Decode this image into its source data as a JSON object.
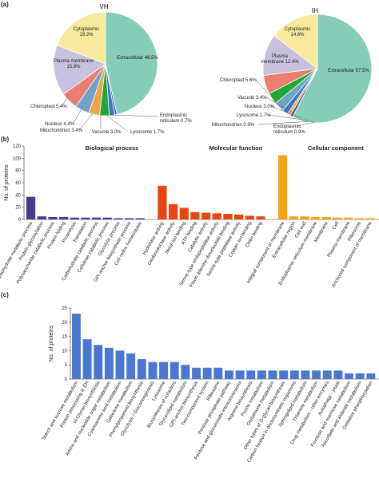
{
  "panels": {
    "a": "(a)",
    "b": "(b)",
    "c": "(c)"
  },
  "chart_data": [
    {
      "type": "pie",
      "title": "VH",
      "slices": [
        {
          "label": "Extracellular",
          "value": 46.5,
          "value_text": "46.5%",
          "color": "#86cdb8"
        },
        {
          "label": "Endoplasmic reticulum",
          "value": 0.7,
          "value_text": "0.7%",
          "color": "#5b5ea6"
        },
        {
          "label": "Lysosome",
          "value": 1.7,
          "value_text": "1.7%",
          "color": "#3a78c2"
        },
        {
          "label": "Vacuole",
          "value": 3.0,
          "value_text": "3.0%",
          "color": "#22a838"
        },
        {
          "label": "Mitochondrion",
          "value": 3.4,
          "value_text": "3.4%",
          "color": "#f0a445"
        },
        {
          "label": "Nucleus",
          "value": 4.4,
          "value_text": "4.4%",
          "color": "#6fa3c8"
        },
        {
          "label": "Chloroplast",
          "value": 5.4,
          "value_text": "5.4%",
          "color": "#ee7d72"
        },
        {
          "label": "Plasma membrane",
          "value": 15.8,
          "value_text": "15.8%",
          "color": "#c7c1de"
        },
        {
          "label": "Cytoplasmic",
          "value": 19.2,
          "value_text": "19.2%",
          "color": "#f7ea9c"
        }
      ]
    },
    {
      "type": "pie",
      "title": "IH",
      "slices": [
        {
          "label": "Extracellular",
          "value": 57.5,
          "value_text": "57.5%",
          "color": "#86cdb8"
        },
        {
          "label": "Endoplasmic reticulum",
          "value": 0.9,
          "value_text": "0.9%",
          "color": "#5b5ea6"
        },
        {
          "label": "Mitochondrion",
          "value": 0.9,
          "value_text": "0.9%",
          "color": "#f0a445"
        },
        {
          "label": "Lysosome",
          "value": 1.7,
          "value_text": "1.7%",
          "color": "#3a78c2"
        },
        {
          "label": "Nucleus",
          "value": 3.0,
          "value_text": "3.0%",
          "color": "#6fa3c8"
        },
        {
          "label": "Vacuole",
          "value": 3.4,
          "value_text": "3.4%",
          "color": "#22a838"
        },
        {
          "label": "Chloroplast",
          "value": 5.6,
          "value_text": "5.6%",
          "color": "#ee7d72"
        },
        {
          "label": "Plasma membrane",
          "value": 12.4,
          "value_text": "12.4%",
          "color": "#c7c1de"
        },
        {
          "label": "Cytoplasmic",
          "value": 14.6,
          "value_text": "14.6%",
          "color": "#f7ea9c"
        }
      ]
    },
    {
      "type": "bar",
      "ylabel": "No. of proteins",
      "ylim": [
        0,
        120
      ],
      "yticks": [
        0,
        20,
        40,
        60,
        80,
        100,
        120
      ],
      "groups": [
        {
          "title": "Biological process",
          "color": "#4b3a8f",
          "categories": [
            "Carbohydrate metabolic process",
            "Protein glycosylation",
            "Polysaccharide catabolic process",
            "Protein folding",
            "Proteolysis",
            "Translation",
            "Carbohydrate catabolic process",
            "Cellulose catabolic process",
            "Glycolytic process",
            "GPI anchor biosynthetic process",
            "Cell redox homeostasis"
          ],
          "values": [
            37,
            5,
            4,
            4,
            3,
            3,
            3,
            3,
            2,
            2,
            2
          ]
        },
        {
          "title": "Molecular function",
          "color": "#e8450f",
          "categories": [
            "Hydrolase activity",
            "Oxidoreductase activity",
            "Metal ion binding",
            "ATP binding",
            "Catalytic activity",
            "Serine-type endopeptidase activity",
            "Flavin adenine dinucleotide binding",
            "Serine-type peptidase activity",
            "Copper ion binding",
            "Chitin binding"
          ],
          "values": [
            55,
            25,
            19,
            12,
            11,
            10,
            9,
            8,
            6,
            5
          ]
        },
        {
          "title": "Cellular component",
          "color": "#f5a515",
          "categories": [
            "Integral component of membrane",
            "Extracellular region",
            "Cell wall",
            "Endoplasmic reticulum membrane",
            "Membrane",
            "Cell",
            "Plasma membrane",
            "Ribosome",
            "Anchored component of membrane"
          ],
          "values": [
            105,
            5,
            5,
            4,
            4,
            3,
            3,
            2,
            2
          ]
        }
      ]
    },
    {
      "type": "bar",
      "ylabel": "No. of proteins",
      "ylim": [
        0,
        25
      ],
      "yticks": [
        0,
        5,
        10,
        15,
        20,
        25
      ],
      "color": "#4a77d0",
      "categories": [
        "Starch and sucrose metabolism",
        "Protein processing in ER",
        "N-Glycan biosynthesis",
        "Amino and nucleotide sugar metabolism",
        "Cyanoamino acid metabolism",
        "Galactose metabolism",
        "Phenylpropanoid biosynthesis",
        "Glycolysis / Gluconeogenesis",
        "Lysosome",
        "Biosynthesis of cofactors",
        "Glycerolipid metabolism",
        "GPI-anchor biosynthesis",
        "Two-component system",
        "Ribosome",
        "Pentose phosphate pathway",
        "Pentose and glucuronate interconversions",
        "Arginine biosynthesis",
        "Purine metabolism",
        "Glutathione metabolism",
        "Other types of O-glycan biosynthesis",
        "Carbon fixation in photosynthetic organisms",
        "Sphingolipid metabolism",
        "Thiamine metabolism",
        "Drug metabolism - other enzymes",
        "Autophagy - yeast",
        "Fructose and mannose metabolism",
        "Ascorbate and aldarate metabolism",
        "Oxidative phosphorylation"
      ],
      "values": [
        23,
        14,
        12,
        11,
        10,
        9,
        7,
        6,
        6,
        6,
        5,
        4,
        4,
        4,
        3,
        3,
        3,
        3,
        3,
        3,
        3,
        3,
        3,
        3,
        3,
        2,
        2,
        2
      ]
    }
  ]
}
